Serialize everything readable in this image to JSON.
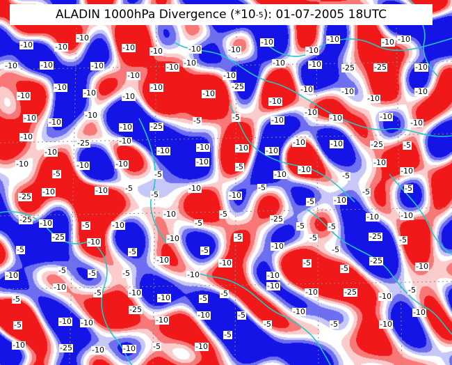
{
  "title": {
    "main": "ALADIN 1000hPa Divergence (*10",
    "exponent": "-5",
    "tail": "): 01-07-2005 18UTC"
  },
  "colors": {
    "strong_divergence": "#f01818",
    "divergence": "#f87878",
    "weak_divergence": "#fccccc",
    "neutral": "#ffffff",
    "weak_convergence": "#c8c8f8",
    "convergence": "#6e6ef0",
    "strong_convergence": "#1414e6",
    "borders": "#20c8c8",
    "grid": "#888888"
  },
  "contour_labels": [
    "-10",
    "-10",
    "-10",
    "-10",
    "-10",
    "-10",
    "-10",
    "-10",
    "-10",
    "-10",
    "-10",
    "-10",
    "-10",
    "-10",
    "-10",
    "-10",
    "-10",
    "-10",
    "-10",
    "-10",
    "-10",
    "-25",
    "-25",
    "-10",
    "-10",
    "-10",
    "-10",
    "-10",
    "-10",
    "-10",
    "-25",
    "-10",
    "-10",
    "-10",
    "-10",
    "-10",
    "-10",
    "-10",
    "-10",
    "-10",
    "-25",
    "-5",
    "-5",
    "-10",
    "-10",
    "-10",
    "-10",
    "-10",
    "-10",
    "-10",
    "-25",
    "-10",
    "-10",
    "-10",
    "-10",
    "-10",
    "-10",
    "-10",
    "-25",
    "-5",
    "-10",
    "-5",
    "-10",
    "-10",
    "-5",
    "-10",
    "-5",
    "-10",
    "-10",
    "-5",
    "-10",
    "-10",
    "-25",
    "-10",
    "-10",
    "-5",
    "-5",
    "-10",
    "-10",
    "-5",
    "-5",
    "-10",
    "-5",
    "-5",
    "-25",
    "-10",
    "-5",
    "-10",
    "-10",
    "-5",
    "-5",
    "-25",
    "-5",
    "-5",
    "-10",
    "-10",
    "-5",
    "-25",
    "-10",
    "-5",
    "-10",
    "-5",
    "-5",
    "-10",
    "-5",
    "-5",
    "-25",
    "-5",
    "-10",
    "-5",
    "-5",
    "-5",
    "-10",
    "-10",
    "-10",
    "-10",
    "-5",
    "-5",
    "-25",
    "-10",
    "-5",
    "-10",
    "-5",
    "-10",
    "-10",
    "-5",
    "-5",
    "-10",
    "-10",
    "-25",
    "-10",
    "-5",
    "-5",
    "-10",
    "-10",
    "-25",
    "-10",
    "-10",
    "-5",
    "-5",
    "-10",
    "-5",
    "-10",
    "-10",
    "-10",
    "-25",
    "-10",
    "-10",
    "-5",
    "-10",
    "-5"
  ]
}
